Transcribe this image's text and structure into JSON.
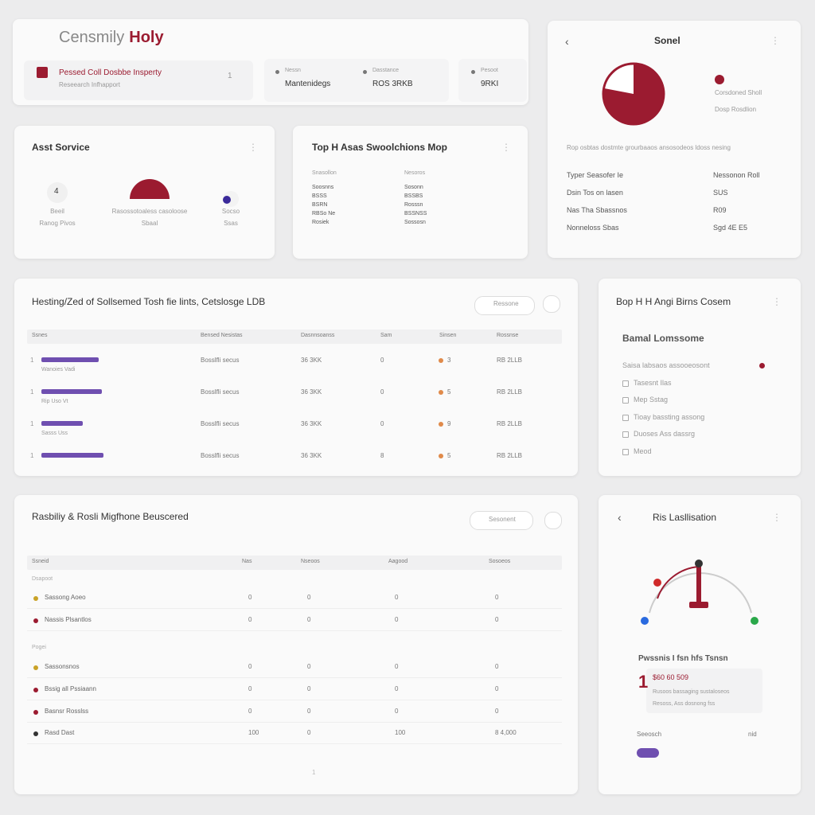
{
  "header": {
    "title_a": "Censmily",
    "title_b": "Holy",
    "item_title": "Pessed Coll Dosbbe Insperty",
    "item_sub": "Reseearch Infhapport",
    "item_count": "1",
    "stats": [
      {
        "label": "Nessn",
        "value": "Mantenidegs"
      },
      {
        "label": "Dasstance",
        "value": "ROS 3RKB"
      },
      {
        "label": "Pesoot",
        "value": "9RKI"
      }
    ]
  },
  "sonel": {
    "title": "Sonel",
    "share": 78,
    "legend_title": "Corsdoned Sholl",
    "legend_sub": "Dosp Rosdlion",
    "note": "Rop osbtas dostmte grourbaaos ansosodeos ldoss nesing",
    "rows": [
      [
        "Typer Seasofer Ie",
        "Nessonon Roll"
      ],
      [
        "Dsin Tos on lasen",
        "SUS"
      ],
      [
        "Nas Tha Sbassnos",
        "R09"
      ],
      [
        "Nonneloss Sbas",
        "Sgd 4E E5"
      ]
    ]
  },
  "service": {
    "title": "Asst Sorvice",
    "icon": "4",
    "items": [
      {
        "label": "Beeil",
        "sub": "Ranog Pivos"
      },
      {
        "label": "Rasossotoaless casoloose",
        "sub": "Sbaal"
      },
      {
        "label": "Socso",
        "sub": "Ssas"
      }
    ]
  },
  "map": {
    "title": "Top H Asas Swoolchions Mop",
    "columns": [
      {
        "head": "Snasollon",
        "lines": [
          "Soosnns",
          "BSSS",
          "BSRN",
          "RBSo Ne",
          "Rosiek"
        ]
      },
      {
        "head": "Nesoros",
        "lines": [
          "Sosonn",
          "BSSBS",
          "Rosssn",
          "BSSNSS",
          "Sossosn"
        ]
      }
    ]
  },
  "table1": {
    "title": "Hesting/Zed of Sollsemed Tosh fie lints, Cetslosge LDB",
    "button": "Ressone",
    "headers": [
      "Ssnes",
      "Bensed Nesistas",
      "Dasnnsoanss",
      "Sam",
      "Sinsen",
      "Rossnse"
    ],
    "rows": [
      {
        "index": "1",
        "name": "Wanoies Vadi",
        "progress": 72,
        "cells": [
          "Bosslfli secus",
          "36 3KK",
          "0",
          "3",
          "RB 2LLB"
        ]
      },
      {
        "index": "1",
        "name": "Rip Uso Vt",
        "progress": 76,
        "cells": [
          "Bosslfli secus",
          "36 3KK",
          "0",
          "5",
          "RB 2LLB"
        ]
      },
      {
        "index": "1",
        "name": "Sasss Uss",
        "progress": 52,
        "cells": [
          "Bosslfli secus",
          "36 3KK",
          "0",
          "9",
          "RB 2LLB"
        ]
      },
      {
        "index": "1",
        "name": "",
        "progress": 78,
        "cells": [
          "Bosslfli secus",
          "36 3KK",
          "8",
          "5",
          "RB 2LLB"
        ]
      }
    ]
  },
  "list": {
    "title": "Bop H H Angi Birns Cosem",
    "subtitle": "Bamal Lomssome",
    "items": [
      "Saisa labsaos assooeosont",
      "Tasesnt Ilas",
      "Mep Sstag",
      "Tioay bassting assong",
      "Duoses Ass dassrg",
      "Meod"
    ]
  },
  "table2": {
    "title": "Rasbiliy & Rosli Migfhone Beuscered",
    "button": "Sesonent",
    "headers": [
      "Ssneid",
      "Nas",
      "Nseoos",
      "Aagood",
      "Sosoeos"
    ],
    "groups": [
      {
        "name": "Dsapoot",
        "rows": [
          {
            "name": "Sassong Aoeo",
            "color": "#c9a227",
            "cells": [
              "0",
              "0",
              "0",
              "0"
            ]
          },
          {
            "name": "Nassis Plsantlos",
            "color": "#9b1b30",
            "cells": [
              "0",
              "0",
              "0",
              "0"
            ]
          }
        ]
      },
      {
        "name": "Pogei",
        "rows": [
          {
            "name": "Sassonsnos",
            "color": "#c9a227",
            "cells": [
              "0",
              "0",
              "0",
              "0"
            ]
          },
          {
            "name": "Bssig all Pssiaann",
            "color": "#9b1b30",
            "cells": [
              "0",
              "0",
              "0",
              "0"
            ]
          },
          {
            "name": "Basnsr Rosslss",
            "color": "#9b1b30",
            "cells": [
              "0",
              "0",
              "0",
              "0"
            ]
          }
        ]
      }
    ],
    "total": {
      "name": "Rasd Dast",
      "color": "#333333",
      "cells": [
        "100",
        "0",
        "100",
        "8 4,000"
      ]
    },
    "page": "1"
  },
  "gauge": {
    "title": "Ris Lasllisation",
    "caption": "Pwssnis I fsn hfs Tsnsn",
    "big": "1",
    "amount": "$60 60 509",
    "note1": "Rusoos bassaging sustaloseos",
    "note2": "Resoss, Ass dosnong fss",
    "footer_left": "Seeosch",
    "footer_right": "nid"
  }
}
